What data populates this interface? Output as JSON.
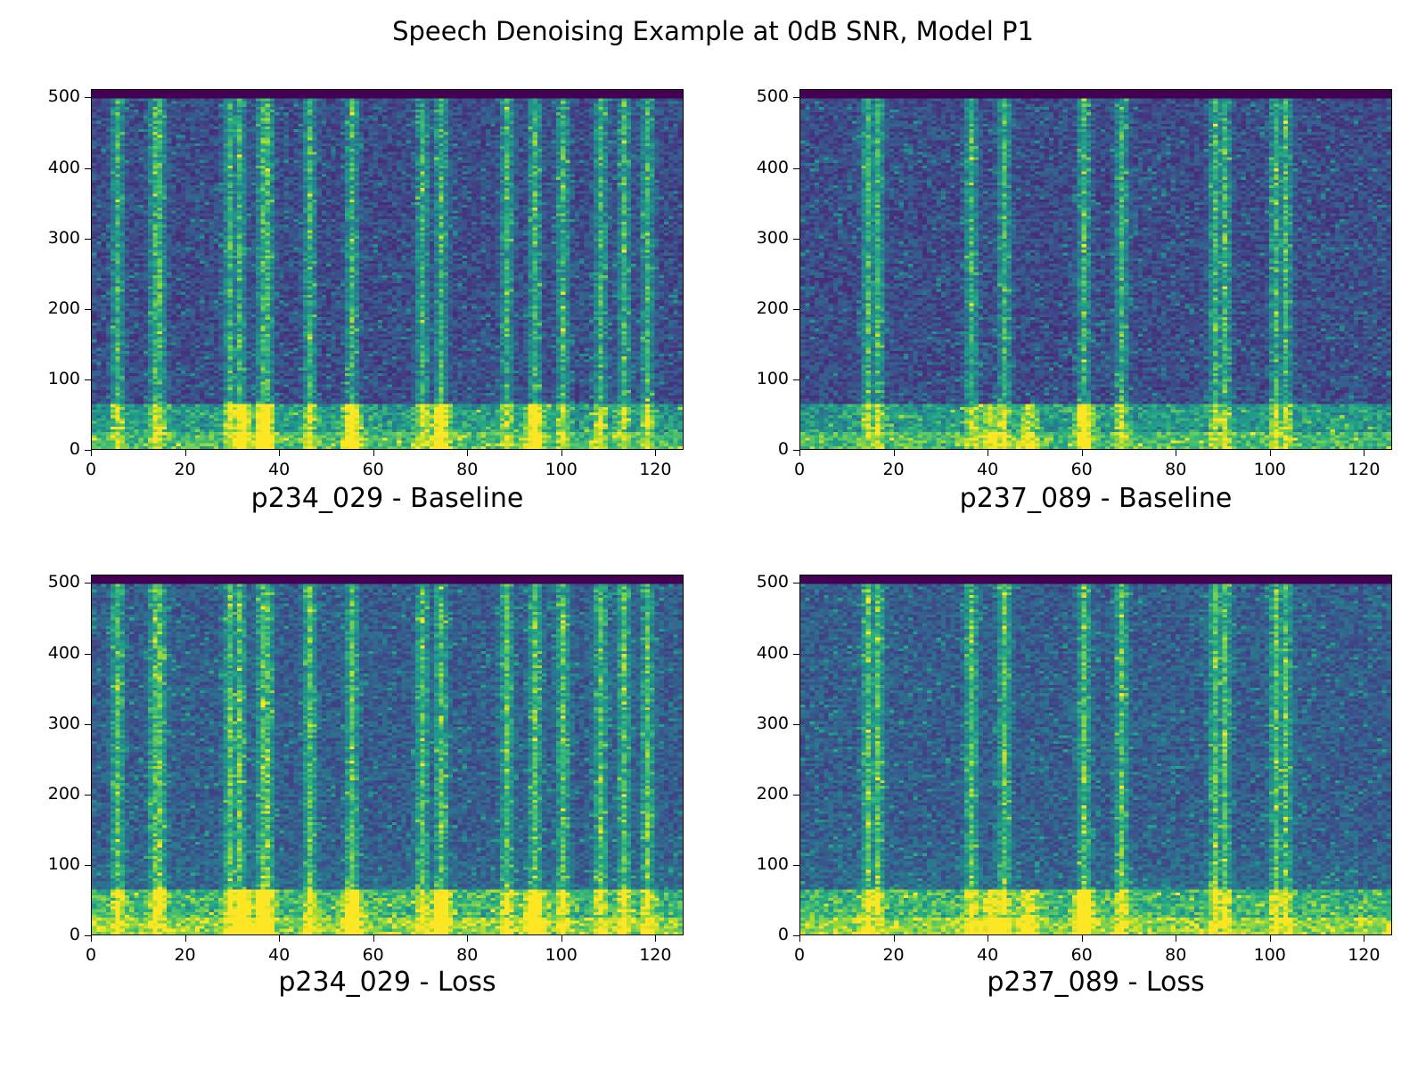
{
  "figure": {
    "title": "Speech Denoising Example at 0dB SNR, Model P1"
  },
  "colormap": {
    "name": "viridis",
    "stops": [
      "#440154",
      "#482878",
      "#3e4989",
      "#31688e",
      "#26828e",
      "#1f9e89",
      "#35b779",
      "#6ece58",
      "#b5de2b",
      "#fde725"
    ]
  },
  "chart_data": [
    {
      "type": "heatmap",
      "title": "",
      "xlabel": "p234_029 - Baseline",
      "ylabel": "",
      "xlim": [
        0,
        126
      ],
      "ylim": [
        0,
        512
      ],
      "x_ticks": [
        "0",
        "20",
        "40",
        "60",
        "80",
        "100",
        "120"
      ],
      "y_ticks": [
        "0",
        "100",
        "200",
        "300",
        "400",
        "500"
      ],
      "speech_frames": [
        5,
        13,
        14,
        29,
        31,
        36,
        37,
        46,
        55,
        70,
        74,
        88,
        94,
        100,
        108,
        113,
        118
      ],
      "low_freq_energy_frames": [
        32,
        36,
        55,
        74,
        94
      ]
    },
    {
      "type": "heatmap",
      "title": "",
      "xlabel": "p237_089 - Baseline",
      "ylabel": "",
      "xlim": [
        0,
        126
      ],
      "ylim": [
        0,
        512
      ],
      "x_ticks": [
        "0",
        "20",
        "40",
        "60",
        "80",
        "100",
        "120"
      ],
      "y_ticks": [
        "0",
        "100",
        "200",
        "300",
        "400",
        "500"
      ],
      "speech_frames": [
        14,
        16,
        36,
        43,
        60,
        68,
        88,
        90,
        101,
        103
      ],
      "low_freq_energy_frames": [
        40,
        48,
        60
      ]
    },
    {
      "type": "heatmap",
      "title": "",
      "xlabel": "p234_029 - Loss",
      "ylabel": "",
      "xlim": [
        0,
        126
      ],
      "ylim": [
        0,
        512
      ],
      "x_ticks": [
        "0",
        "20",
        "40",
        "60",
        "80",
        "100",
        "120"
      ],
      "y_ticks": [
        "0",
        "100",
        "200",
        "300",
        "400",
        "500"
      ],
      "speech_frames": [
        5,
        13,
        14,
        29,
        31,
        36,
        37,
        46,
        55,
        70,
        74,
        88,
        94,
        100,
        108,
        113,
        118
      ],
      "low_freq_energy_frames": [
        32,
        36,
        55,
        74,
        94
      ]
    },
    {
      "type": "heatmap",
      "title": "",
      "xlabel": "p237_089 - Loss",
      "ylabel": "",
      "xlim": [
        0,
        126
      ],
      "ylim": [
        0,
        512
      ],
      "x_ticks": [
        "0",
        "20",
        "40",
        "60",
        "80",
        "100",
        "120"
      ],
      "y_ticks": [
        "0",
        "100",
        "200",
        "300",
        "400",
        "500"
      ],
      "speech_frames": [
        14,
        16,
        36,
        43,
        60,
        68,
        88,
        90,
        101,
        103
      ],
      "low_freq_energy_frames": [
        40,
        48,
        60
      ]
    }
  ]
}
